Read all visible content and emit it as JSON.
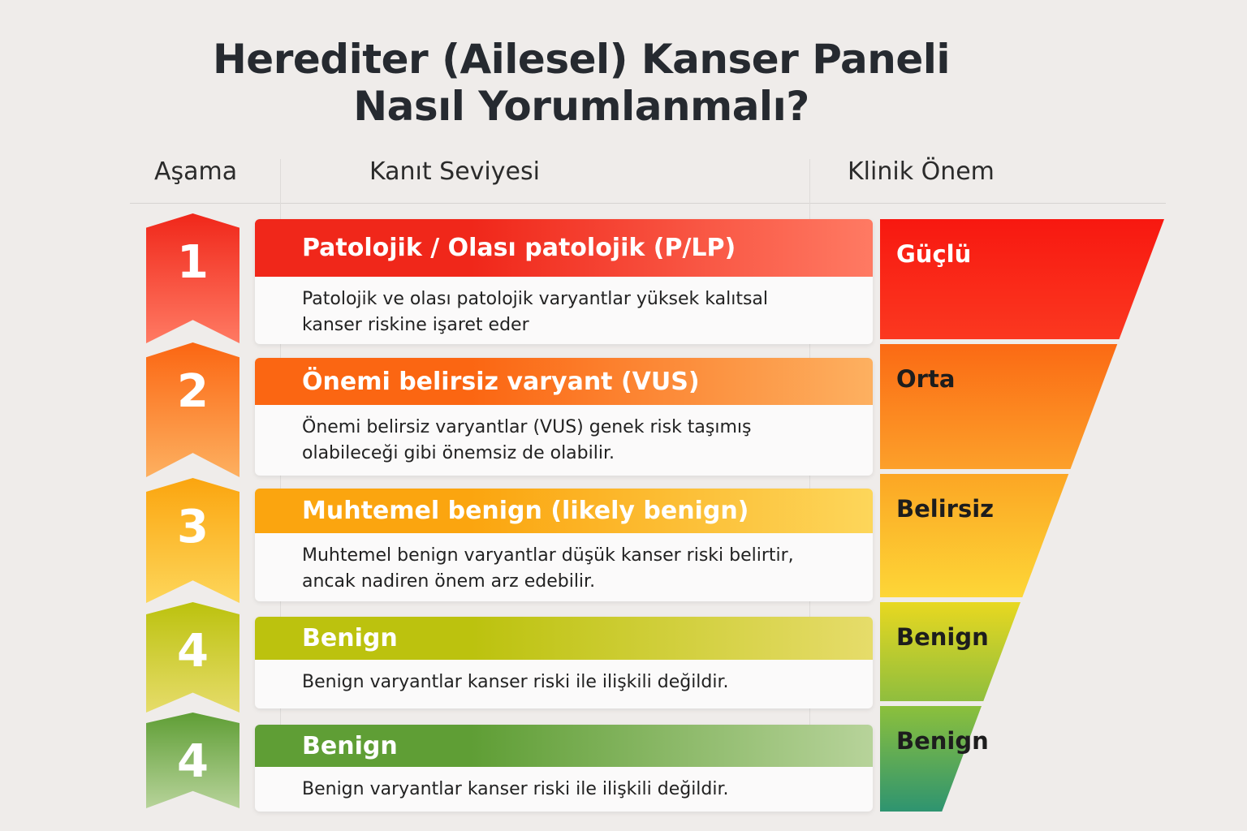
{
  "title": {
    "line1": "Herediter (Ailesel) Kanser Paneli",
    "line2": "Nasıl Yorumlanmalı?"
  },
  "columns": {
    "stage": "Aşama",
    "evidence": "Kanıt Seviyesi",
    "clinical": "Klinik Önem"
  },
  "rows": [
    {
      "stage": "1",
      "title": "Patolojik / Olası patolojik (P/LP)",
      "desc1": "Patolojik ve olası patolojik varyantlar yüksek kalıtsal",
      "desc2": "kanser riskine işaret eder",
      "color": "#f0271a",
      "color2": "#ff7a63"
    },
    {
      "stage": "2",
      "title": "Önemi belirsiz varyant (VUS)",
      "desc1": "Önemi belirsiz varyantlar (VUS) genek risk taşımış",
      "desc2": "olabileceği gibi önemsiz de olabilir.",
      "color": "#fb6612",
      "color2": "#fdb060"
    },
    {
      "stage": "3",
      "title": "Muhtemel benign (likely benign)",
      "desc1": "Muhtemel benign varyantlar düşük kanser riski belirtir,",
      "desc2": "ancak nadiren önem arz edebilir.",
      "color": "#fba50f",
      "color2": "#fdd65a"
    },
    {
      "stage": "4",
      "title": "Benign",
      "desc1": "Benign varyantlar kanser riski ile ilişkili değildir.",
      "desc2": "",
      "color": "#bcc20e",
      "color2": "#e6dc6a"
    },
    {
      "stage": "4",
      "title": "Benign",
      "desc1": "Benign varyantlar kanser riski ile ilişkili değildir.",
      "desc2": "",
      "color": "#5f9e35",
      "color2": "#b7d39a"
    }
  ],
  "clinical_levels": [
    {
      "label": "Güçlü",
      "top": "#f81810",
      "bottom": "#fb3820",
      "text_color": "#ffffff"
    },
    {
      "label": "Orta",
      "top": "#fb6a14",
      "bottom": "#fca02a",
      "text_color": "#1d1d1d"
    },
    {
      "label": "Belirsiz",
      "top": "#fca624",
      "bottom": "#fdd637",
      "text_color": "#1d1d1d"
    },
    {
      "label": "Benign",
      "top": "#e8d820",
      "bottom": "#8fbe3e",
      "text_color": "#1d1d1d"
    },
    {
      "label": "Benign",
      "top": "#8cc03c",
      "bottom": "#2e9470",
      "text_color": "#1d1d1d"
    }
  ]
}
